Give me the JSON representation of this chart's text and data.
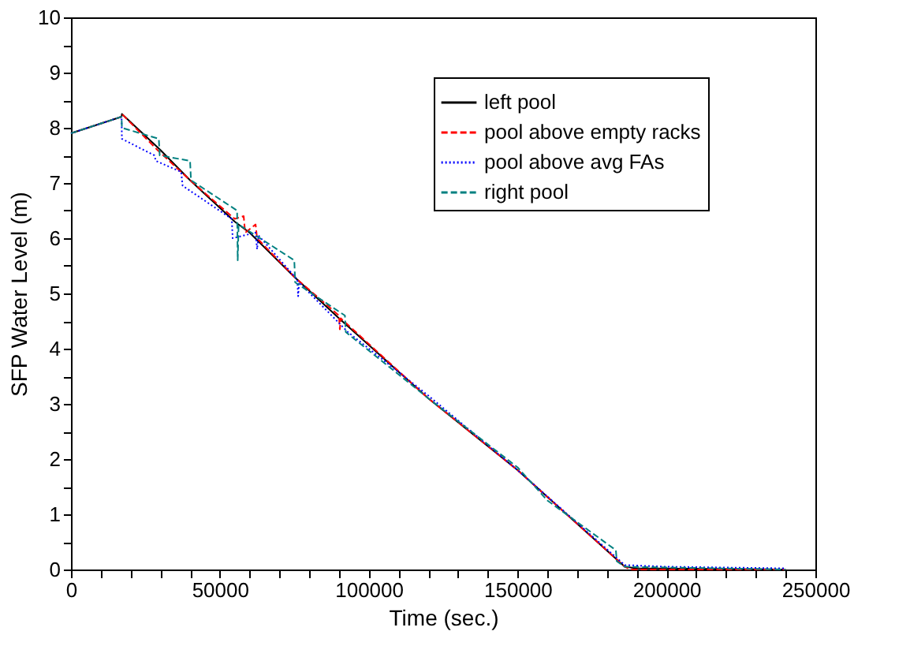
{
  "chart_data": {
    "type": "line",
    "xlabel": "Time (sec.)",
    "ylabel": "SFP Water Level (m)",
    "xlim": [
      0,
      250000
    ],
    "ylim": [
      0,
      10
    ],
    "xticks": [
      0,
      {
        "value": 10000,
        "label": null
      },
      {
        "value": 20000,
        "label": null
      },
      {
        "value": 30000,
        "label": null
      },
      {
        "value": 40000,
        "label": null
      },
      50000,
      {
        "value": 60000,
        "label": null
      },
      {
        "value": 70000,
        "label": null
      },
      {
        "value": 80000,
        "label": null
      },
      {
        "value": 90000,
        "label": null
      },
      100000,
      {
        "value": 110000,
        "label": null
      },
      {
        "value": 120000,
        "label": null
      },
      {
        "value": 130000,
        "label": null
      },
      {
        "value": 140000,
        "label": null
      },
      150000,
      {
        "value": 160000,
        "label": null
      },
      {
        "value": 170000,
        "label": null
      },
      {
        "value": 180000,
        "label": null
      },
      {
        "value": 190000,
        "label": null
      },
      200000,
      {
        "value": 210000,
        "label": null
      },
      {
        "value": 220000,
        "label": null
      },
      {
        "value": 230000,
        "label": null
      },
      {
        "value": 240000,
        "label": null
      },
      250000
    ],
    "yticks": [
      0,
      {
        "value": 0.5,
        "label": null
      },
      1,
      {
        "value": 1.5,
        "label": null
      },
      2,
      {
        "value": 2.5,
        "label": null
      },
      3,
      {
        "value": 3.5,
        "label": null
      },
      4,
      {
        "value": 4.5,
        "label": null
      },
      5,
      {
        "value": 5.5,
        "label": null
      },
      6,
      {
        "value": 6.5,
        "label": null
      },
      7,
      {
        "value": 7.5,
        "label": null
      },
      8,
      {
        "value": 8.5,
        "label": null
      },
      9,
      {
        "value": 9.5,
        "label": null
      },
      10
    ],
    "grid": false,
    "legend": "top right",
    "marker": "none",
    "series": [
      {
        "name": "left pool",
        "color": "#000000",
        "line_style": "solid",
        "x": [
          0,
          17000,
          17100,
          30000,
          40000,
          55000,
          60000,
          75000,
          90000,
          120000,
          150000,
          186000,
          190000,
          240000
        ],
        "values": [
          7.9,
          8.2,
          8.25,
          7.6,
          7.05,
          6.3,
          6.1,
          5.3,
          4.55,
          3.1,
          1.8,
          0.05,
          0.02,
          0
        ]
      },
      {
        "name": "pool above empty racks",
        "color": "#ff0000",
        "line_style": "dashed",
        "x": [
          0,
          17000,
          17100,
          29000,
          40000,
          55000,
          58000,
          58500,
          62000,
          62500,
          75000,
          90000,
          90300,
          90600,
          120000,
          150000,
          186000,
          188000,
          240000
        ],
        "values": [
          7.9,
          8.2,
          8.25,
          7.6,
          7.05,
          6.35,
          6.4,
          6.1,
          6.25,
          6.0,
          5.3,
          4.6,
          4.35,
          4.55,
          3.1,
          1.8,
          0.05,
          0,
          0
        ]
      },
      {
        "name": "pool above avg FAs",
        "color": "#0000ff",
        "line_style": "dotted",
        "x": [
          0,
          17000,
          17100,
          28000,
          28500,
          37000,
          37500,
          54000,
          54300,
          62000,
          62500,
          63000,
          76000,
          76300,
          76600,
          93000,
          120000,
          150000,
          186000,
          200000,
          240000
        ],
        "values": [
          7.9,
          8.2,
          7.8,
          7.5,
          7.4,
          7.2,
          6.95,
          6.35,
          6.0,
          6.1,
          5.8,
          6.05,
          5.25,
          4.95,
          5.2,
          4.3,
          3.15,
          1.8,
          0.08,
          0.05,
          0.02
        ]
      },
      {
        "name": "right pool",
        "color": "#008080",
        "line_style": "dashed",
        "x": [
          0,
          17000,
          17100,
          29500,
          29800,
          40000,
          40300,
          55800,
          56000,
          56300,
          75000,
          75300,
          92000,
          92300,
          120000,
          150000,
          160000,
          183000,
          183300,
          186000,
          240000
        ],
        "values": [
          7.9,
          8.2,
          8.0,
          7.8,
          7.5,
          7.4,
          7.05,
          6.5,
          5.6,
          6.25,
          5.6,
          5.2,
          4.6,
          4.3,
          3.1,
          1.85,
          1.25,
          0.35,
          0.15,
          0.05,
          0
        ]
      }
    ]
  }
}
